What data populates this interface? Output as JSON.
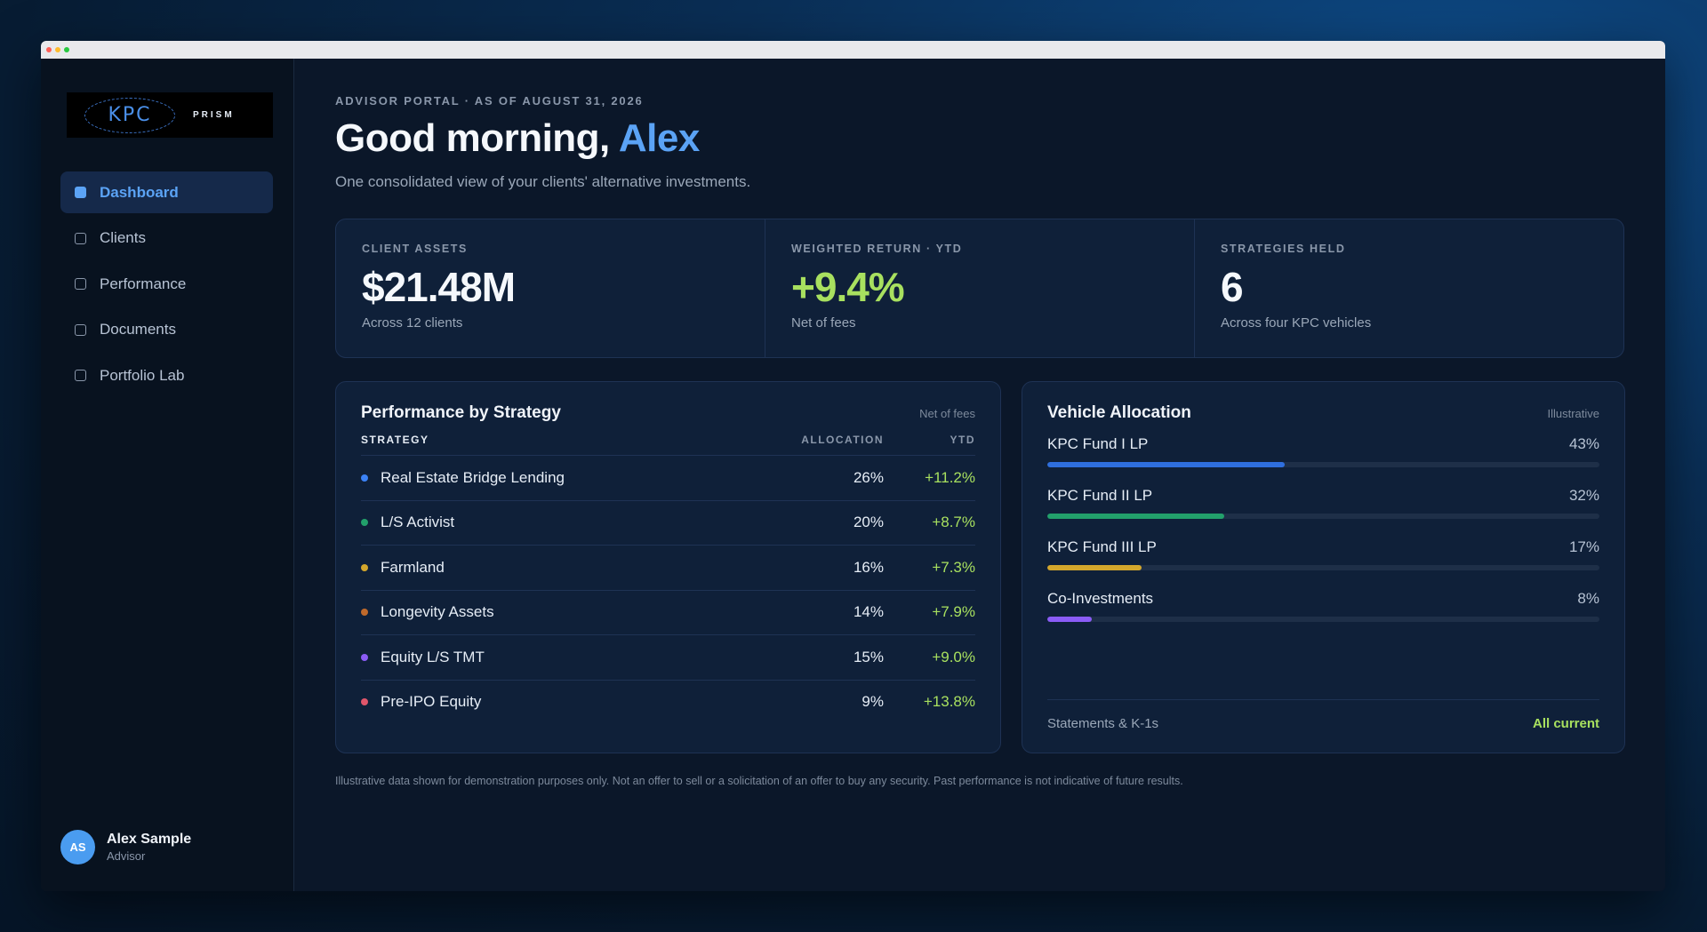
{
  "sidebar": {
    "logo": {
      "mark": "KPC",
      "word": "PRISM"
    },
    "nav": [
      {
        "label": "Dashboard",
        "active": true
      },
      {
        "label": "Clients",
        "active": false
      },
      {
        "label": "Performance",
        "active": false
      },
      {
        "label": "Documents",
        "active": false
      },
      {
        "label": "Portfolio Lab",
        "active": false
      }
    ],
    "user": {
      "initials": "AS",
      "name": "Alex Sample",
      "role": "Advisor"
    }
  },
  "header": {
    "eyebrow": "ADVISOR PORTAL · AS OF AUGUST 31, 2026",
    "greeting_prefix": "Good morning, ",
    "greeting_name": "Alex",
    "subtitle": "One consolidated view of your clients' alternative investments."
  },
  "kpis": [
    {
      "label": "CLIENT ASSETS",
      "value": "$21.48M",
      "sub": "Across 12 clients",
      "accent": false
    },
    {
      "label": "WEIGHTED RETURN · YTD",
      "value": "+9.4%",
      "sub": "Net of fees",
      "accent": true
    },
    {
      "label": "STRATEGIES HELD",
      "value": "6",
      "sub": "Across four KPC vehicles",
      "accent": false
    }
  ],
  "performance": {
    "title": "Performance by Strategy",
    "note": "Net of fees",
    "columns": [
      "STRATEGY",
      "ALLOCATION",
      "YTD"
    ],
    "rows": [
      {
        "strategy": "Real Estate Bridge Lending",
        "allocation": "26%",
        "ytd": "+11.2%",
        "color": "#3b82f6"
      },
      {
        "strategy": "L/S Activist",
        "allocation": "20%",
        "ytd": "+8.7%",
        "color": "#22a06b"
      },
      {
        "strategy": "Farmland",
        "allocation": "16%",
        "ytd": "+7.3%",
        "color": "#d4a72c"
      },
      {
        "strategy": "Longevity Assets",
        "allocation": "14%",
        "ytd": "+7.9%",
        "color": "#c06a2b"
      },
      {
        "strategy": "Equity L/S TMT",
        "allocation": "15%",
        "ytd": "+9.0%",
        "color": "#8b5cf6"
      },
      {
        "strategy": "Pre-IPO Equity",
        "allocation": "9%",
        "ytd": "+13.8%",
        "color": "#e0566b"
      }
    ]
  },
  "allocation": {
    "title": "Vehicle Allocation",
    "note": "Illustrative",
    "items": [
      {
        "name": "KPC Fund I LP",
        "pct_label": "43%",
        "pct": 43,
        "color": "#2f6fde"
      },
      {
        "name": "KPC Fund II LP",
        "pct_label": "32%",
        "pct": 32,
        "color": "#22a06b"
      },
      {
        "name": "KPC Fund III LP",
        "pct_label": "17%",
        "pct": 17,
        "color": "#d4a72c"
      },
      {
        "name": "Co-Investments",
        "pct_label": "8%",
        "pct": 8,
        "color": "#8b5cf6"
      }
    ],
    "footer_label": "Statements & K-1s",
    "footer_status": "All current"
  },
  "disclaimer": "Illustrative data shown for demonstration purposes only. Not an offer to sell or a solicitation of an offer to buy any security. Past performance is not indicative of future results."
}
